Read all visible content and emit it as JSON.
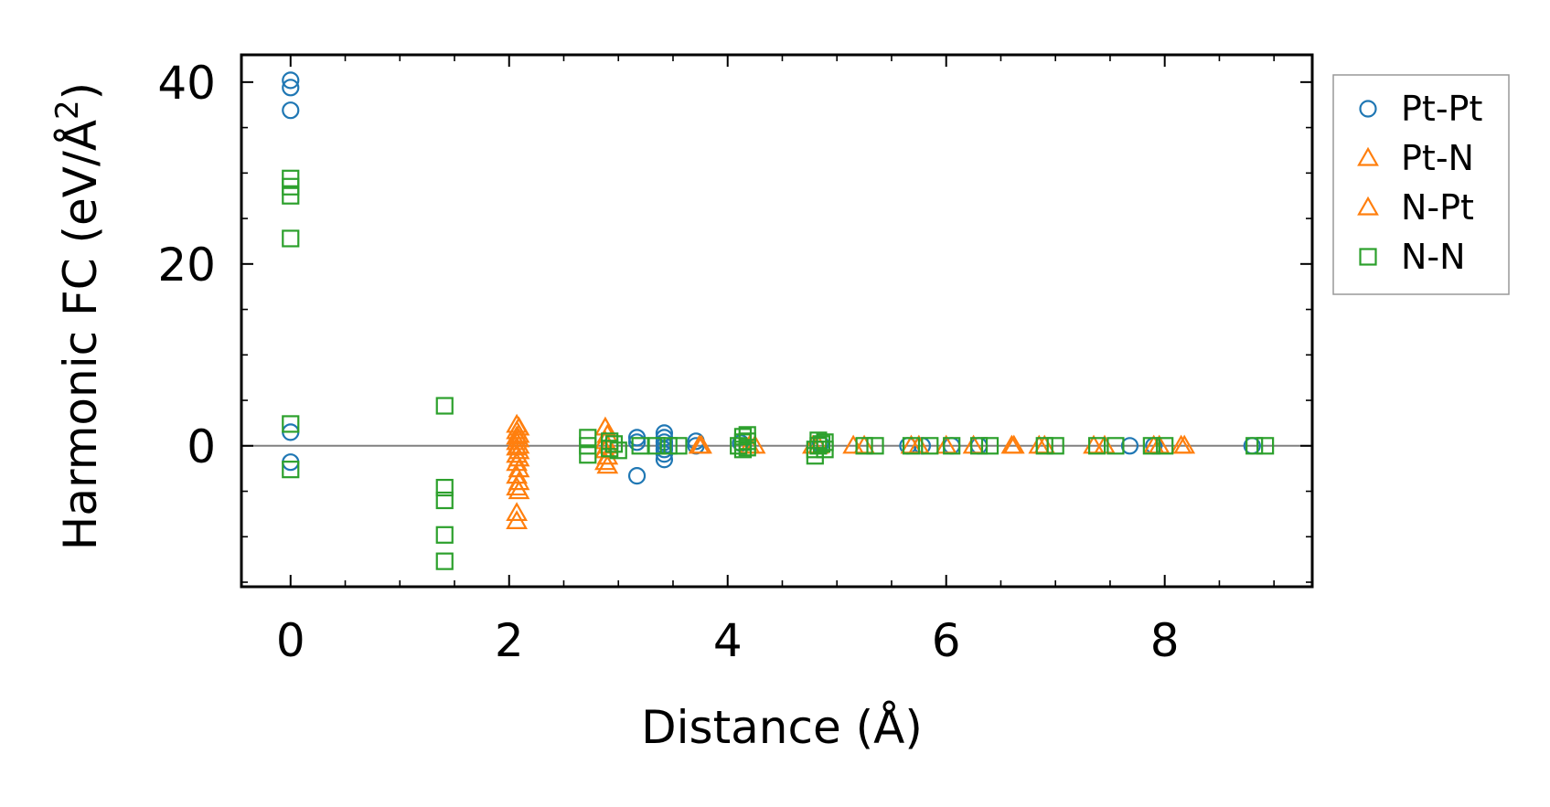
{
  "chart_data": {
    "type": "scatter",
    "xlabel": "Distance (Å)",
    "ylabel_main": "Harmonic FC (eV/Å",
    "ylabel_sup": "2",
    "ylabel_close": ")",
    "xlim": [
      -0.45,
      9.35
    ],
    "ylim": [
      -15.5,
      43
    ],
    "xticks": [
      0,
      2,
      4,
      6,
      8
    ],
    "xtick_labels": [
      "0",
      "2",
      "4",
      "6",
      "8"
    ],
    "xminor_step": 0.5,
    "yticks": [
      0,
      20,
      40
    ],
    "ytick_labels": [
      "0",
      "20",
      "40"
    ],
    "yminor_step": 5,
    "zero_line": true,
    "grid": false,
    "legend_position": "outside-right-top",
    "series": [
      {
        "name": "Pt-Pt",
        "marker": "circle",
        "color": "#1f77b4",
        "points": [
          [
            0,
            40.2
          ],
          [
            0,
            39.4
          ],
          [
            0,
            36.9
          ],
          [
            0,
            1.5
          ],
          [
            0,
            -1.8
          ],
          [
            3.17,
            0.9
          ],
          [
            3.17,
            0.4
          ],
          [
            3.17,
            -3.3
          ],
          [
            3.42,
            1.4
          ],
          [
            3.42,
            0.9
          ],
          [
            3.42,
            0.4
          ],
          [
            3.42,
            0
          ],
          [
            3.42,
            -0.4
          ],
          [
            3.42,
            -0.9
          ],
          [
            3.42,
            -1.5
          ],
          [
            3.71,
            0.5
          ],
          [
            3.71,
            0
          ],
          [
            4.12,
            0.3
          ],
          [
            4.85,
            0.2
          ],
          [
            5.65,
            0
          ],
          [
            5.78,
            0
          ],
          [
            6.05,
            0
          ],
          [
            6.3,
            0
          ],
          [
            7.68,
            0
          ],
          [
            7.9,
            0
          ],
          [
            8.8,
            0
          ]
        ]
      },
      {
        "name": "Pt-N",
        "marker": "triangle",
        "color": "#ff7f0e",
        "points": [
          [
            2.07,
            2.3
          ],
          [
            2.07,
            1.6
          ],
          [
            2.07,
            1.0
          ],
          [
            2.07,
            0.4
          ],
          [
            2.07,
            -0.2
          ],
          [
            2.07,
            -1.0
          ],
          [
            2.07,
            -1.9
          ],
          [
            2.07,
            -3.3
          ],
          [
            2.07,
            -4.6
          ],
          [
            2.07,
            -7.4
          ],
          [
            2.07,
            -8.3
          ],
          [
            2.88,
            2.0
          ],
          [
            2.88,
            0.5
          ],
          [
            2.88,
            -0.5
          ],
          [
            2.88,
            -1.8
          ],
          [
            3.74,
            0
          ],
          [
            4.25,
            0
          ],
          [
            4.78,
            0
          ],
          [
            5.15,
            0
          ],
          [
            5.75,
            0
          ],
          [
            6.25,
            0
          ],
          [
            6.62,
            0
          ],
          [
            6.9,
            0
          ],
          [
            7.45,
            0
          ],
          [
            7.95,
            0
          ],
          [
            8.18,
            0
          ]
        ]
      },
      {
        "name": "N-Pt",
        "marker": "triangle",
        "color": "#ff7f0e",
        "points": [
          [
            2.09,
            2.0
          ],
          [
            2.09,
            1.2
          ],
          [
            2.09,
            0.7
          ],
          [
            2.09,
            0
          ],
          [
            2.09,
            -0.6
          ],
          [
            2.09,
            -1.4
          ],
          [
            2.09,
            -2.6
          ],
          [
            2.09,
            -4.0
          ],
          [
            2.09,
            -5.0
          ],
          [
            2.9,
            1.2
          ],
          [
            2.9,
            0
          ],
          [
            2.9,
            -1.2
          ],
          [
            2.9,
            -2.2
          ],
          [
            3.76,
            0
          ],
          [
            4.2,
            0
          ],
          [
            4.83,
            0
          ],
          [
            5.25,
            0
          ],
          [
            5.68,
            0
          ],
          [
            6.0,
            0
          ],
          [
            6.6,
            0
          ],
          [
            6.85,
            0
          ],
          [
            7.35,
            0
          ],
          [
            7.9,
            0
          ],
          [
            8.15,
            0
          ]
        ]
      },
      {
        "name": "N-N",
        "marker": "square",
        "color": "#2ca02c",
        "points": [
          [
            0,
            29.4
          ],
          [
            0,
            28.5
          ],
          [
            0,
            27.5
          ],
          [
            0,
            22.8
          ],
          [
            0,
            2.4
          ],
          [
            0,
            -2.6
          ],
          [
            1.41,
            4.4
          ],
          [
            1.41,
            -4.6
          ],
          [
            1.41,
            -6.0
          ],
          [
            1.41,
            -9.8
          ],
          [
            1.41,
            -12.7
          ],
          [
            2.72,
            0.9
          ],
          [
            2.72,
            0
          ],
          [
            2.72,
            -1.0
          ],
          [
            2.92,
            0.5
          ],
          [
            2.92,
            -0.3
          ],
          [
            2.96,
            0.2
          ],
          [
            3.0,
            -0.5
          ],
          [
            3.2,
            0
          ],
          [
            3.35,
            0
          ],
          [
            3.46,
            0
          ],
          [
            3.55,
            0
          ],
          [
            4.1,
            0
          ],
          [
            4.14,
            1.0
          ],
          [
            4.14,
            0.4
          ],
          [
            4.14,
            -0.4
          ],
          [
            4.18,
            1.2
          ],
          [
            4.18,
            0.5
          ],
          [
            4.18,
            -0.2
          ],
          [
            4.8,
            -0.4
          ],
          [
            4.8,
            -1.1
          ],
          [
            4.83,
            0.6
          ],
          [
            4.83,
            0
          ],
          [
            4.86,
            0.2
          ],
          [
            4.89,
            0.4
          ],
          [
            4.89,
            -0.4
          ],
          [
            5.25,
            0
          ],
          [
            5.35,
            0
          ],
          [
            5.68,
            0
          ],
          [
            5.85,
            0
          ],
          [
            6.05,
            0
          ],
          [
            6.3,
            0
          ],
          [
            6.4,
            0
          ],
          [
            6.9,
            0
          ],
          [
            7.0,
            0
          ],
          [
            7.38,
            0
          ],
          [
            7.55,
            0
          ],
          [
            7.88,
            0
          ],
          [
            8.0,
            0
          ],
          [
            8.82,
            0
          ],
          [
            8.92,
            0
          ]
        ]
      }
    ]
  }
}
